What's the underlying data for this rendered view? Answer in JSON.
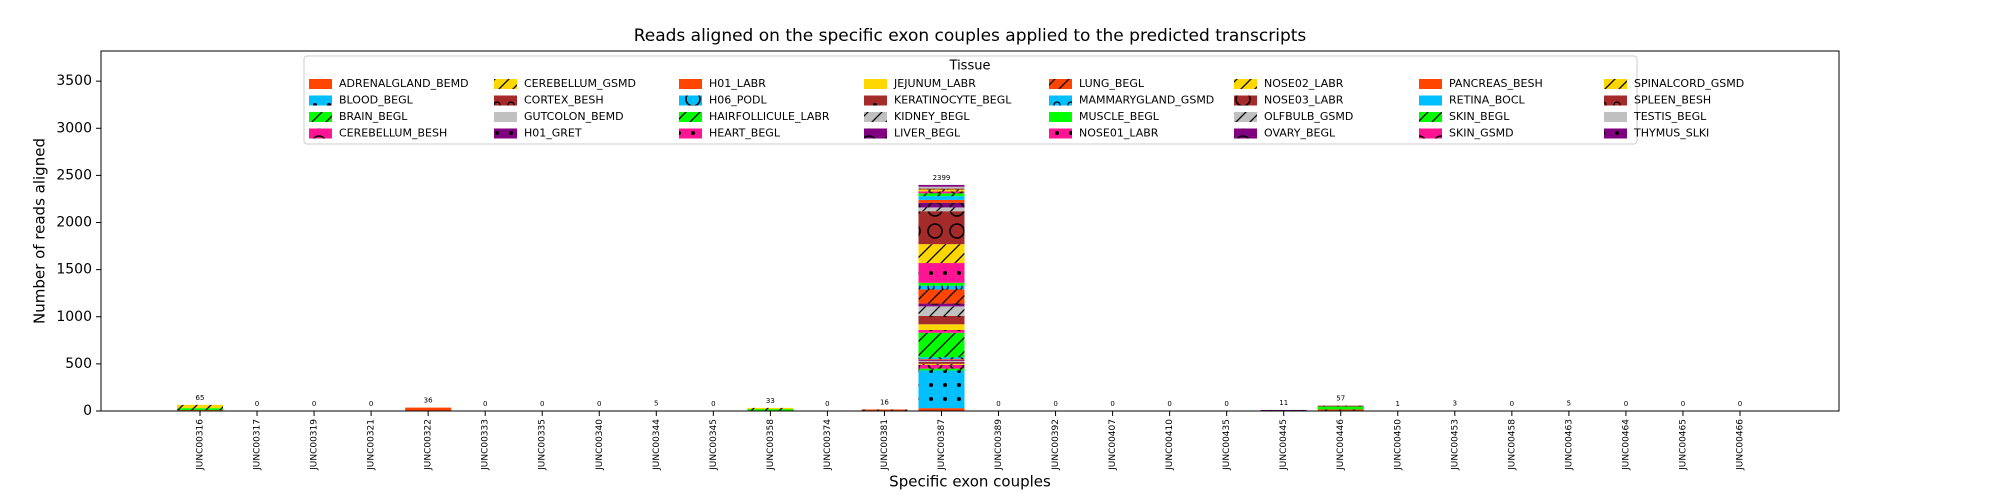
{
  "chart_data": {
    "type": "stacked_bar",
    "title": "Reads aligned on the specific exon couples applied to the predicted transcripts",
    "x_label": "Specific exon couples",
    "y_label": "Number of reads aligned",
    "legend_title": "Tissue",
    "legend_position": "upper center",
    "ylim": [
      0,
      3820
    ],
    "yticks": [
      0,
      500,
      1000,
      1500,
      2000,
      2500,
      3000,
      3500
    ],
    "categories": [
      "JUNC00316",
      "JUNC00317",
      "JUNC00319",
      "JUNC00321",
      "JUNC00322",
      "JUNC00333",
      "JUNC00335",
      "JUNC00340",
      "JUNC00344",
      "JUNC00345",
      "JUNC00358",
      "JUNC00374",
      "JUNC00381",
      "JUNC00387",
      "JUNC00389",
      "JUNC00392",
      "JUNC00407",
      "JUNC00410",
      "JUNC00435",
      "JUNC00445",
      "JUNC00446",
      "JUNC00450",
      "JUNC00453",
      "JUNC00458",
      "JUNC00463",
      "JUNC00464",
      "JUNC00465",
      "JUNC00466"
    ],
    "bar_labels": [
      65,
      0,
      0,
      0,
      36,
      0,
      0,
      0,
      5,
      0,
      33,
      0,
      16,
      2399,
      0,
      0,
      0,
      0,
      0,
      11,
      57,
      1,
      3,
      0,
      5,
      0,
      0,
      0
    ],
    "series": [
      {
        "name": "ADRENALGLAND_BEMD",
        "color": "#ff4500",
        "hatch": "",
        "values": [
          10,
          0,
          0,
          0,
          36,
          0,
          0,
          0,
          0,
          0,
          0,
          0,
          0,
          30,
          0,
          0,
          0,
          0,
          0,
          0,
          0,
          0,
          0,
          0,
          0,
          0,
          0,
          0
        ]
      },
      {
        "name": "BLOOD_BEGL",
        "color": "#00bfff",
        "hatch": ".",
        "values": [
          0,
          0,
          0,
          0,
          0,
          0,
          0,
          0,
          0,
          0,
          0,
          0,
          0,
          400,
          0,
          0,
          0,
          0,
          0,
          0,
          0,
          0,
          0,
          0,
          0,
          0,
          0,
          0
        ]
      },
      {
        "name": "BRAIN_BEGL",
        "color": "#00ff00",
        "hatch": "/",
        "values": [
          20,
          0,
          0,
          0,
          0,
          0,
          0,
          0,
          0,
          0,
          0,
          0,
          0,
          20,
          0,
          0,
          0,
          0,
          0,
          0,
          0,
          0,
          0,
          0,
          0,
          0,
          0,
          0
        ]
      },
      {
        "name": "CEREBELLUM_BESH",
        "color": "#ff1493",
        "hatch": "O",
        "values": [
          0,
          0,
          0,
          0,
          0,
          0,
          0,
          0,
          0,
          0,
          0,
          0,
          0,
          40,
          0,
          0,
          0,
          0,
          0,
          0,
          0,
          0,
          0,
          0,
          0,
          0,
          0,
          0
        ]
      },
      {
        "name": "CEREBELLUM_GSMD",
        "color": "#ffd700",
        "hatch": "/",
        "values": [
          35,
          0,
          0,
          0,
          0,
          0,
          0,
          0,
          0,
          0,
          0,
          0,
          0,
          10,
          0,
          0,
          0,
          0,
          0,
          0,
          0,
          0,
          0,
          0,
          0,
          0,
          0,
          0
        ]
      },
      {
        "name": "CORTEX_BESH",
        "color": "#a52a2a",
        "hatch": "o",
        "values": [
          0,
          0,
          0,
          0,
          0,
          0,
          0,
          0,
          0,
          0,
          0,
          0,
          0,
          20,
          0,
          0,
          0,
          0,
          0,
          0,
          0,
          0,
          0,
          0,
          0,
          0,
          0,
          0
        ]
      },
      {
        "name": "GUTCOLON_BEMD",
        "color": "#c0c0c0",
        "hatch": "",
        "values": [
          0,
          0,
          0,
          0,
          0,
          0,
          0,
          0,
          0,
          0,
          0,
          0,
          0,
          10,
          0,
          0,
          0,
          0,
          0,
          0,
          0,
          0,
          0,
          0,
          0,
          0,
          0,
          0
        ]
      },
      {
        "name": "H01_GRET",
        "color": "#800080",
        "hatch": ".",
        "values": [
          0,
          0,
          0,
          0,
          0,
          0,
          0,
          0,
          0,
          0,
          0,
          0,
          0,
          10,
          0,
          0,
          0,
          0,
          0,
          0,
          0,
          0,
          0,
          0,
          0,
          0,
          0,
          0
        ]
      },
      {
        "name": "H01_LABR",
        "color": "#ff4500",
        "hatch": "",
        "values": [
          0,
          0,
          0,
          0,
          0,
          0,
          0,
          0,
          5,
          0,
          0,
          0,
          0,
          10,
          0,
          0,
          0,
          0,
          0,
          0,
          0,
          0,
          0,
          0,
          0,
          0,
          0,
          0
        ]
      },
      {
        "name": "H06_PODL",
        "color": "#00bfff",
        "hatch": "O",
        "values": [
          0,
          0,
          0,
          0,
          0,
          0,
          0,
          0,
          0,
          0,
          0,
          0,
          0,
          20,
          0,
          0,
          0,
          0,
          0,
          0,
          0,
          0,
          0,
          0,
          0,
          0,
          0,
          0
        ]
      },
      {
        "name": "HAIRFOLLICULE_LABR",
        "color": "#00ff00",
        "hatch": "/",
        "values": [
          0,
          0,
          0,
          0,
          0,
          0,
          0,
          0,
          0,
          0,
          0,
          0,
          0,
          260,
          0,
          0,
          0,
          0,
          0,
          0,
          0,
          0,
          0,
          0,
          0,
          0,
          0,
          0
        ]
      },
      {
        "name": "HEART_BEGL",
        "color": "#ff1493",
        "hatch": ".",
        "values": [
          0,
          0,
          0,
          0,
          0,
          0,
          0,
          0,
          0,
          0,
          0,
          0,
          0,
          30,
          0,
          0,
          0,
          0,
          0,
          0,
          0,
          0,
          0,
          0,
          0,
          0,
          0,
          0
        ]
      },
      {
        "name": "JEJUNUM_LABR",
        "color": "#ffd700",
        "hatch": "",
        "values": [
          0,
          0,
          0,
          0,
          0,
          0,
          0,
          0,
          0,
          0,
          0,
          0,
          0,
          60,
          0,
          0,
          0,
          0,
          0,
          0,
          0,
          0,
          0,
          0,
          0,
          0,
          0,
          0
        ]
      },
      {
        "name": "KERATINOCYTE_BEGL",
        "color": "#a52a2a",
        "hatch": ".",
        "values": [
          0,
          0,
          0,
          0,
          0,
          0,
          0,
          0,
          0,
          0,
          0,
          0,
          0,
          90,
          0,
          0,
          0,
          0,
          0,
          0,
          0,
          0,
          0,
          0,
          0,
          0,
          0,
          0
        ]
      },
      {
        "name": "KIDNEY_BEGL",
        "color": "#c0c0c0",
        "hatch": "/",
        "values": [
          0,
          0,
          0,
          0,
          0,
          0,
          0,
          0,
          0,
          0,
          0,
          0,
          0,
          100,
          0,
          0,
          0,
          0,
          0,
          0,
          0,
          0,
          0,
          0,
          0,
          0,
          0,
          0
        ]
      },
      {
        "name": "LIVER_BEGL",
        "color": "#800080",
        "hatch": "O",
        "values": [
          0,
          0,
          0,
          0,
          0,
          0,
          0,
          0,
          0,
          0,
          0,
          0,
          0,
          30,
          0,
          0,
          0,
          0,
          0,
          0,
          0,
          0,
          0,
          0,
          0,
          0,
          0,
          0
        ]
      },
      {
        "name": "LUNG_BEGL",
        "color": "#ff4500",
        "hatch": "/",
        "values": [
          0,
          0,
          0,
          0,
          0,
          0,
          0,
          0,
          0,
          0,
          0,
          0,
          16,
          150,
          0,
          0,
          0,
          0,
          0,
          0,
          17,
          0,
          0,
          0,
          0,
          0,
          0,
          0
        ]
      },
      {
        "name": "MAMMARYGLAND_GSMD",
        "color": "#00bfff",
        "hatch": "o",
        "values": [
          0,
          0,
          0,
          0,
          0,
          0,
          0,
          0,
          0,
          0,
          0,
          0,
          0,
          40,
          0,
          0,
          0,
          0,
          0,
          0,
          0,
          0,
          0,
          0,
          0,
          0,
          0,
          0
        ]
      },
      {
        "name": "MUSCLE_BEGL",
        "color": "#00ff00",
        "hatch": "",
        "values": [
          0,
          0,
          0,
          0,
          0,
          0,
          0,
          0,
          0,
          0,
          0,
          0,
          0,
          30,
          0,
          0,
          0,
          0,
          0,
          0,
          30,
          0,
          0,
          0,
          0,
          0,
          0,
          0
        ]
      },
      {
        "name": "NOSE01_LABR",
        "color": "#ff1493",
        "hatch": ".",
        "values": [
          0,
          0,
          0,
          0,
          0,
          0,
          0,
          0,
          0,
          0,
          0,
          0,
          0,
          210,
          0,
          0,
          0,
          0,
          0,
          0,
          0,
          0,
          0,
          0,
          0,
          0,
          0,
          0
        ]
      },
      {
        "name": "NOSE02_LABR",
        "color": "#ffd700",
        "hatch": "/",
        "values": [
          0,
          0,
          0,
          0,
          0,
          0,
          0,
          0,
          0,
          0,
          0,
          0,
          0,
          200,
          0,
          0,
          0,
          0,
          0,
          0,
          0,
          0,
          0,
          0,
          0,
          0,
          0,
          0
        ]
      },
      {
        "name": "NOSE03_LABR",
        "color": "#a52a2a",
        "hatch": "O",
        "values": [
          0,
          0,
          0,
          0,
          0,
          0,
          0,
          0,
          0,
          0,
          0,
          0,
          0,
          350,
          0,
          0,
          0,
          0,
          0,
          0,
          10,
          0,
          0,
          0,
          0,
          0,
          0,
          0
        ]
      },
      {
        "name": "OLFBULB_GSMD",
        "color": "#c0c0c0",
        "hatch": "/",
        "values": [
          0,
          0,
          0,
          0,
          0,
          0,
          0,
          0,
          0,
          0,
          0,
          0,
          0,
          40,
          0,
          0,
          0,
          0,
          0,
          0,
          0,
          0,
          0,
          0,
          0,
          0,
          0,
          0
        ]
      },
      {
        "name": "OVARY_BEGL",
        "color": "#800080",
        "hatch": "O",
        "values": [
          0,
          0,
          0,
          0,
          0,
          0,
          0,
          0,
          0,
          0,
          0,
          0,
          0,
          50,
          0,
          0,
          0,
          0,
          0,
          11,
          0,
          0,
          0,
          0,
          0,
          0,
          0,
          0
        ]
      },
      {
        "name": "PANCREAS_BESH",
        "color": "#ff4500",
        "hatch": "",
        "values": [
          0,
          0,
          0,
          0,
          0,
          0,
          0,
          0,
          0,
          0,
          0,
          0,
          0,
          30,
          0,
          0,
          0,
          0,
          0,
          0,
          0,
          0,
          0,
          0,
          5,
          0,
          0,
          0
        ]
      },
      {
        "name": "RETINA_BOCL",
        "color": "#00bfff",
        "hatch": "",
        "values": [
          0,
          0,
          0,
          0,
          0,
          0,
          0,
          0,
          0,
          0,
          0,
          0,
          0,
          40,
          0,
          0,
          0,
          0,
          0,
          0,
          0,
          0,
          3,
          0,
          0,
          0,
          0,
          0
        ]
      },
      {
        "name": "SKIN_BEGL",
        "color": "#00ff00",
        "hatch": "/",
        "values": [
          0,
          0,
          0,
          0,
          0,
          0,
          0,
          0,
          0,
          0,
          20,
          0,
          0,
          30,
          0,
          0,
          0,
          0,
          0,
          0,
          0,
          0,
          0,
          0,
          0,
          0,
          0,
          0
        ]
      },
      {
        "name": "SKIN_GSMD",
        "color": "#ff1493",
        "hatch": "O",
        "values": [
          0,
          0,
          0,
          0,
          0,
          0,
          0,
          0,
          0,
          0,
          0,
          0,
          0,
          20,
          0,
          0,
          0,
          0,
          0,
          0,
          0,
          0,
          0,
          0,
          0,
          0,
          0,
          0
        ]
      },
      {
        "name": "SPINALCORD_GSMD",
        "color": "#ffd700",
        "hatch": "/",
        "values": [
          0,
          0,
          0,
          0,
          0,
          0,
          0,
          0,
          0,
          0,
          13,
          0,
          0,
          20,
          0,
          0,
          0,
          0,
          0,
          0,
          0,
          0,
          0,
          0,
          0,
          0,
          0,
          0
        ]
      },
      {
        "name": "SPLEEN_BESH",
        "color": "#a52a2a",
        "hatch": "o",
        "values": [
          0,
          0,
          0,
          0,
          0,
          0,
          0,
          0,
          0,
          0,
          0,
          0,
          0,
          10,
          0,
          0,
          0,
          0,
          0,
          0,
          0,
          0,
          0,
          0,
          0,
          0,
          0,
          0
        ]
      },
      {
        "name": "TESTIS_BEGL",
        "color": "#c0c0c0",
        "hatch": "",
        "values": [
          0,
          0,
          0,
          0,
          0,
          0,
          0,
          0,
          0,
          0,
          0,
          0,
          0,
          20,
          0,
          0,
          0,
          0,
          0,
          0,
          0,
          1,
          0,
          0,
          0,
          0,
          0,
          0
        ]
      },
      {
        "name": "THYMUS_SLKI",
        "color": "#800080",
        "hatch": ".",
        "values": [
          0,
          0,
          0,
          0,
          0,
          0,
          0,
          0,
          0,
          0,
          0,
          0,
          0,
          19,
          0,
          0,
          0,
          0,
          0,
          0,
          0,
          0,
          0,
          0,
          0,
          0,
          0,
          0
        ]
      }
    ]
  }
}
